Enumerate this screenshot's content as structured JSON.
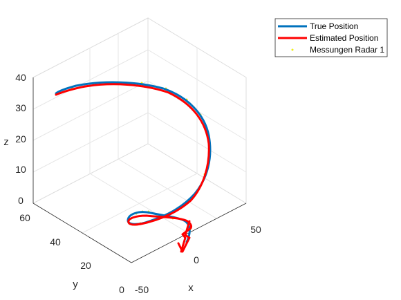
{
  "chart_data": {
    "type": "line",
    "title": "",
    "xlabel": "x",
    "ylabel": "y",
    "zlabel": "z",
    "xlim": [
      -50,
      50
    ],
    "ylim": [
      0,
      60
    ],
    "zlim": [
      0,
      40
    ],
    "x_ticks": [
      "-50",
      "0",
      "50"
    ],
    "y_ticks": [
      "0",
      "20",
      "40",
      "60"
    ],
    "z_ticks": [
      "0",
      "10",
      "20",
      "30",
      "40"
    ],
    "grid": true,
    "legend_position": "top-right",
    "legend": [
      {
        "label": "True Position",
        "color": "#0072BD",
        "style": "line"
      },
      {
        "label": "Estimated Position",
        "color": "#FF0000",
        "style": "line"
      },
      {
        "label": "Messungen Radar 1",
        "color": "#FFFF00",
        "style": "marker"
      }
    ]
  }
}
